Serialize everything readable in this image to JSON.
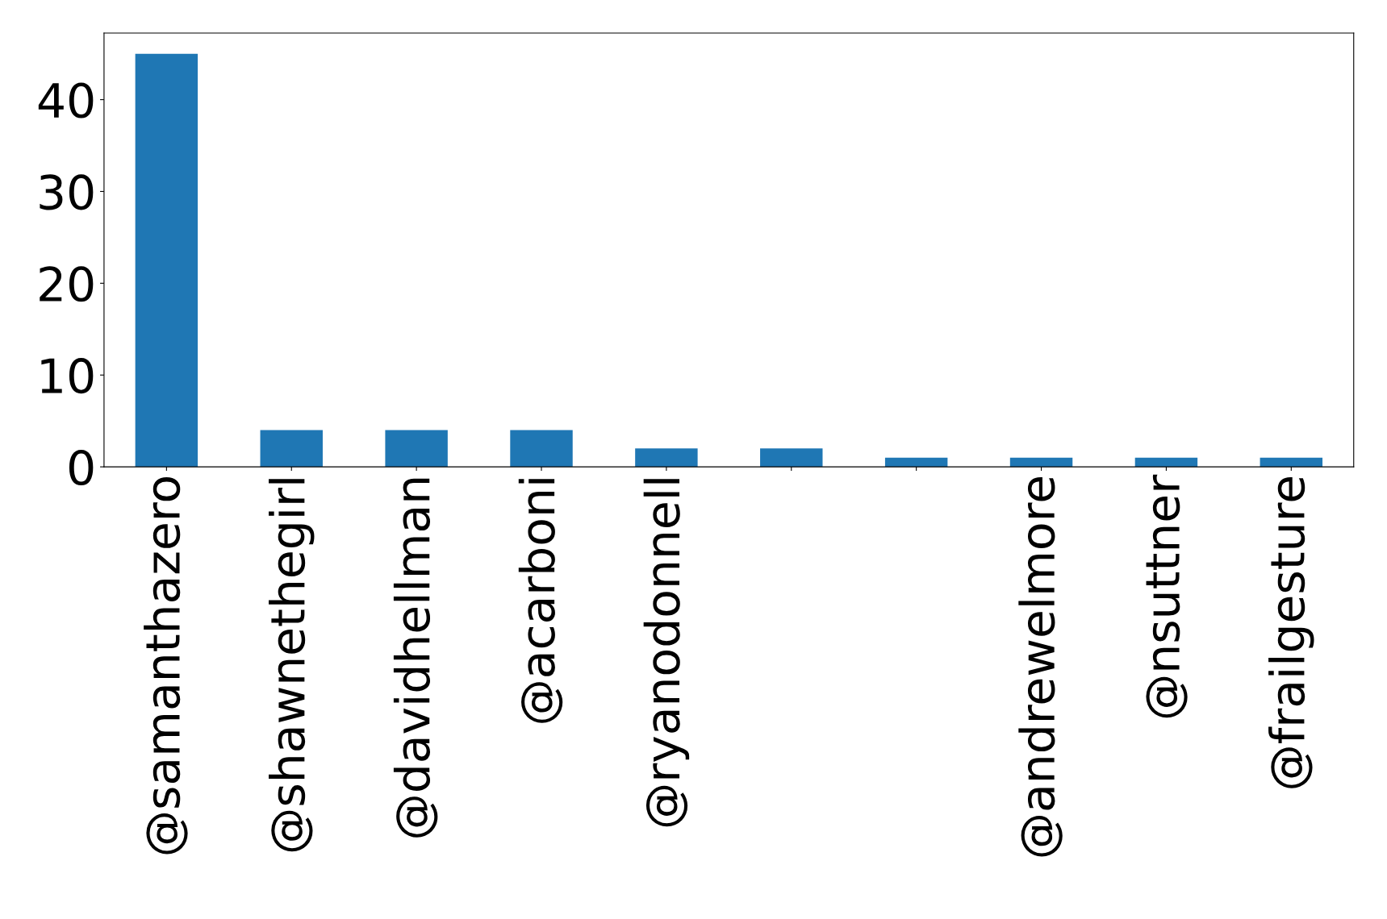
{
  "chart_data": {
    "type": "bar",
    "categories": [
      "@samanthazero",
      "@shawnethegirl",
      "@davidhellman",
      "@acarboni",
      "@ryanodonnell",
      null,
      null,
      "@andrewelmore",
      "@nsuttner",
      "@frailgesture"
    ],
    "values": [
      45,
      4,
      4,
      4,
      2,
      2,
      1,
      1,
      1,
      1
    ],
    "color": "#1f77b4",
    "ylim": [
      0,
      47.25
    ],
    "yticks": [
      0,
      10,
      20,
      30,
      40
    ],
    "grid": false,
    "legend": false
  }
}
